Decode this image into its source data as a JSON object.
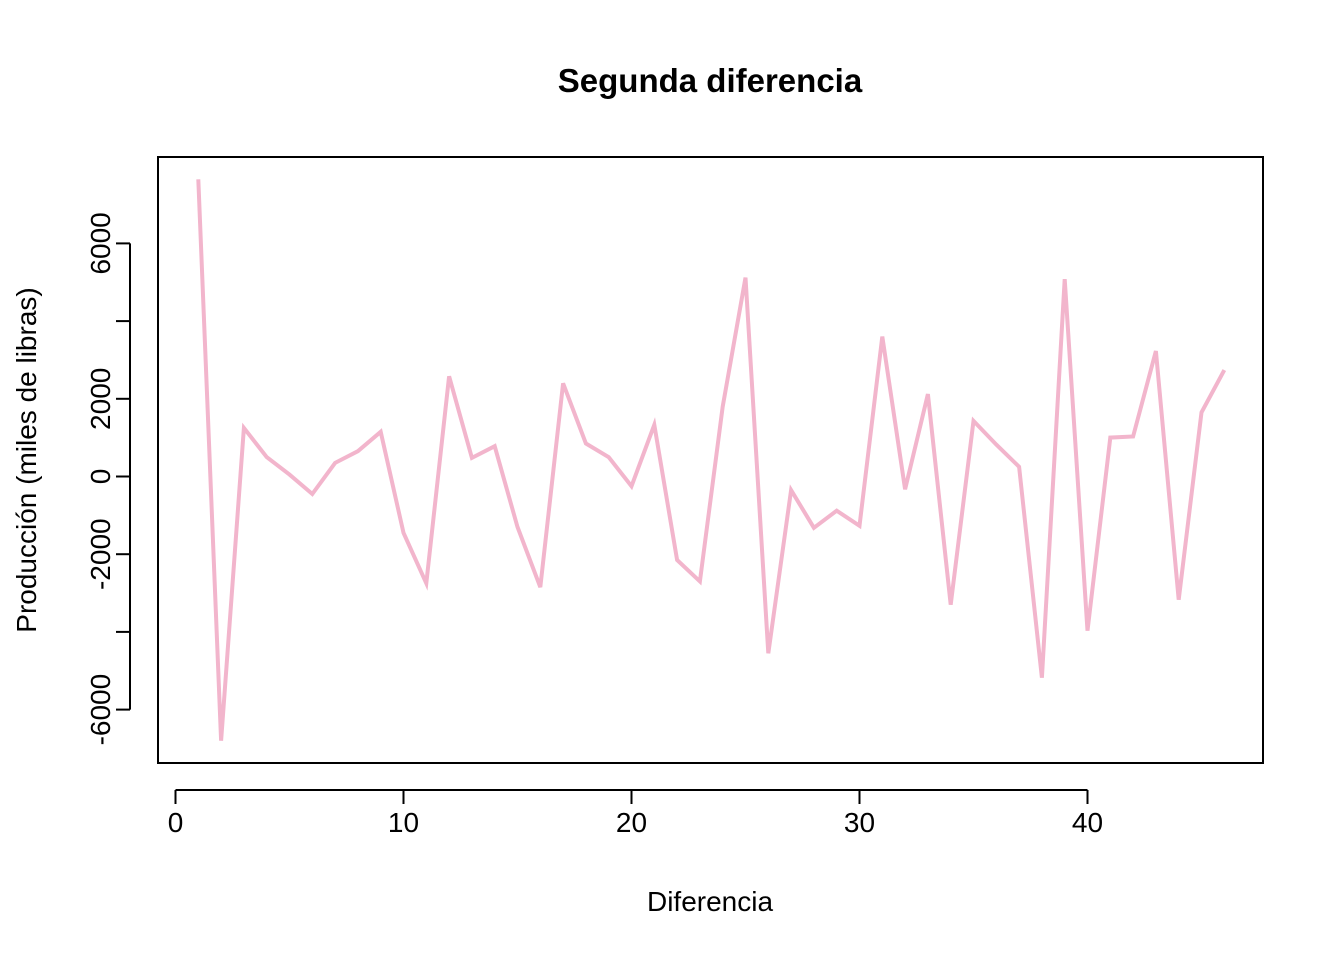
{
  "chart_data": {
    "type": "line",
    "title": "Segunda diferencia",
    "xlabel": "Diferencia",
    "ylabel": "Producción (miles de libras)",
    "xlim": [
      0,
      47
    ],
    "ylim": [
      -7000,
      8000
    ],
    "x_ticks": [
      0,
      10,
      20,
      30,
      40
    ],
    "x_tick_labels": [
      "0",
      "10",
      "20",
      "30",
      "40"
    ],
    "y_ticks": [
      -6000,
      -4000,
      -2000,
      0,
      2000,
      4000,
      6000
    ],
    "y_tick_labels": [
      "-6000",
      "",
      "-2000",
      "0",
      "2000",
      "",
      "6000"
    ],
    "grid": false,
    "line_color": "#F2B5CC",
    "series": [
      {
        "x": [
          1,
          2,
          3,
          4,
          5,
          6,
          7,
          8,
          9,
          10,
          11,
          12,
          13,
          14,
          15,
          16,
          17,
          18,
          19,
          20,
          21,
          22,
          23,
          24,
          25,
          26,
          27,
          28,
          29,
          30,
          31,
          32,
          33,
          34,
          35,
          36,
          37,
          38,
          39,
          40,
          41,
          42,
          43,
          44,
          45,
          46
        ],
        "values": [
          7650,
          -6800,
          1250,
          500,
          50,
          -450,
          350,
          650,
          1150,
          -1450,
          -2750,
          2580,
          480,
          780,
          -1300,
          -2850,
          2400,
          850,
          500,
          -250,
          1330,
          -2150,
          -2700,
          1800,
          5120,
          -4550,
          -350,
          -1320,
          -880,
          -1270,
          3600,
          -330,
          2120,
          -3300,
          1430,
          820,
          250,
          -5180,
          5080,
          -3970,
          1000,
          1030,
          3230,
          -3170,
          1650,
          2740
        ]
      }
    ]
  }
}
